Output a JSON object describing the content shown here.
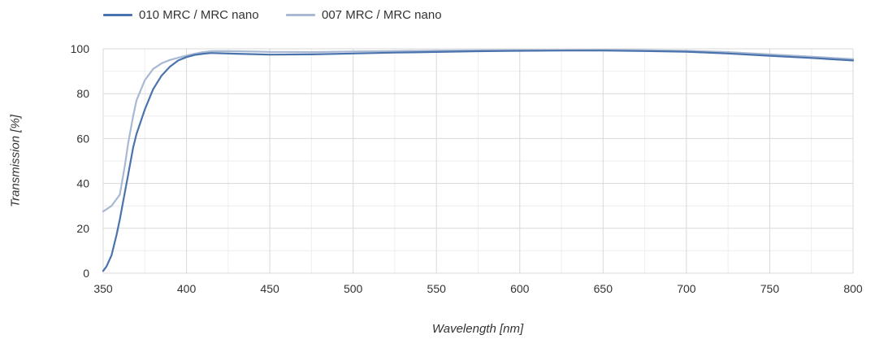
{
  "chart_data": {
    "type": "line",
    "xlabel": "Wavelength [nm]",
    "ylabel": "Transmission [%]",
    "xlim": [
      350,
      800
    ],
    "ylim": [
      0,
      100
    ],
    "x_ticks": [
      350,
      400,
      450,
      500,
      550,
      600,
      650,
      700,
      750,
      800
    ],
    "y_ticks": [
      0,
      20,
      40,
      60,
      80,
      100
    ],
    "grid": true,
    "legend_position": "top-left",
    "series": [
      {
        "name": "010 MRC / MRC nano",
        "color": "#4a73ad",
        "x": [
          350,
          352,
          355,
          358,
          360,
          362,
          365,
          368,
          370,
          375,
          380,
          385,
          390,
          395,
          400,
          405,
          410,
          415,
          420,
          430,
          440,
          450,
          475,
          500,
          525,
          550,
          575,
          600,
          625,
          650,
          675,
          700,
          725,
          750,
          775,
          800
        ],
        "y": [
          1,
          3,
          8,
          17,
          24,
          32,
          44,
          56,
          62,
          73,
          82,
          88,
          92,
          94.8,
          96.3,
          97.3,
          97.8,
          98.1,
          98.0,
          97.8,
          97.6,
          97.4,
          97.5,
          97.9,
          98.3,
          98.6,
          98.9,
          99.1,
          99.2,
          99.2,
          99.0,
          98.7,
          97.9,
          96.9,
          95.9,
          94.8
        ]
      },
      {
        "name": "007 MRC / MRC nano",
        "color": "#a9b9d3",
        "x": [
          350,
          355,
          360,
          363,
          365,
          368,
          370,
          375,
          380,
          385,
          390,
          395,
          400,
          405,
          410,
          415,
          420,
          430,
          440,
          450,
          475,
          500,
          525,
          550,
          575,
          600,
          625,
          650,
          675,
          700,
          725,
          750,
          775,
          800
        ],
        "y": [
          27.5,
          30,
          35,
          48,
          58,
          70,
          77,
          86,
          91,
          93.5,
          95,
          96,
          97,
          97.8,
          98.5,
          98.9,
          99.0,
          98.9,
          98.8,
          98.6,
          98.5,
          98.8,
          99.0,
          99.2,
          99.3,
          99.4,
          99.4,
          99.5,
          99.4,
          99.1,
          98.5,
          97.5,
          96.5,
          95.4
        ]
      }
    ]
  }
}
